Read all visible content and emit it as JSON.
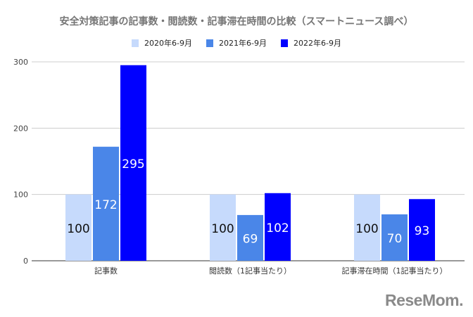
{
  "chart_data": {
    "type": "bar",
    "title": "安全対策記事の記事数・閲読数・記事滞在時間の比較（スマートニュース調べ）",
    "categories": [
      "記事数",
      "閲読数（1記事当たり）",
      "記事滞在時間（1記事当たり）"
    ],
    "series": [
      {
        "name": "2020年6-9月",
        "color": "#c6dafc",
        "values": [
          100,
          100,
          100
        ]
      },
      {
        "name": "2021年6-9月",
        "color": "#4a86e8",
        "values": [
          172,
          69,
          70
        ]
      },
      {
        "name": "2022年6-9月",
        "color": "#0000ff",
        "values": [
          295,
          102,
          93
        ]
      }
    ],
    "yticks": [
      0,
      100,
      200,
      300
    ],
    "ylim": [
      0,
      300
    ],
    "xlabel": "",
    "ylabel": "",
    "grid": true,
    "legend": "top-center",
    "data_labels": true
  },
  "watermark": "ReseMom"
}
